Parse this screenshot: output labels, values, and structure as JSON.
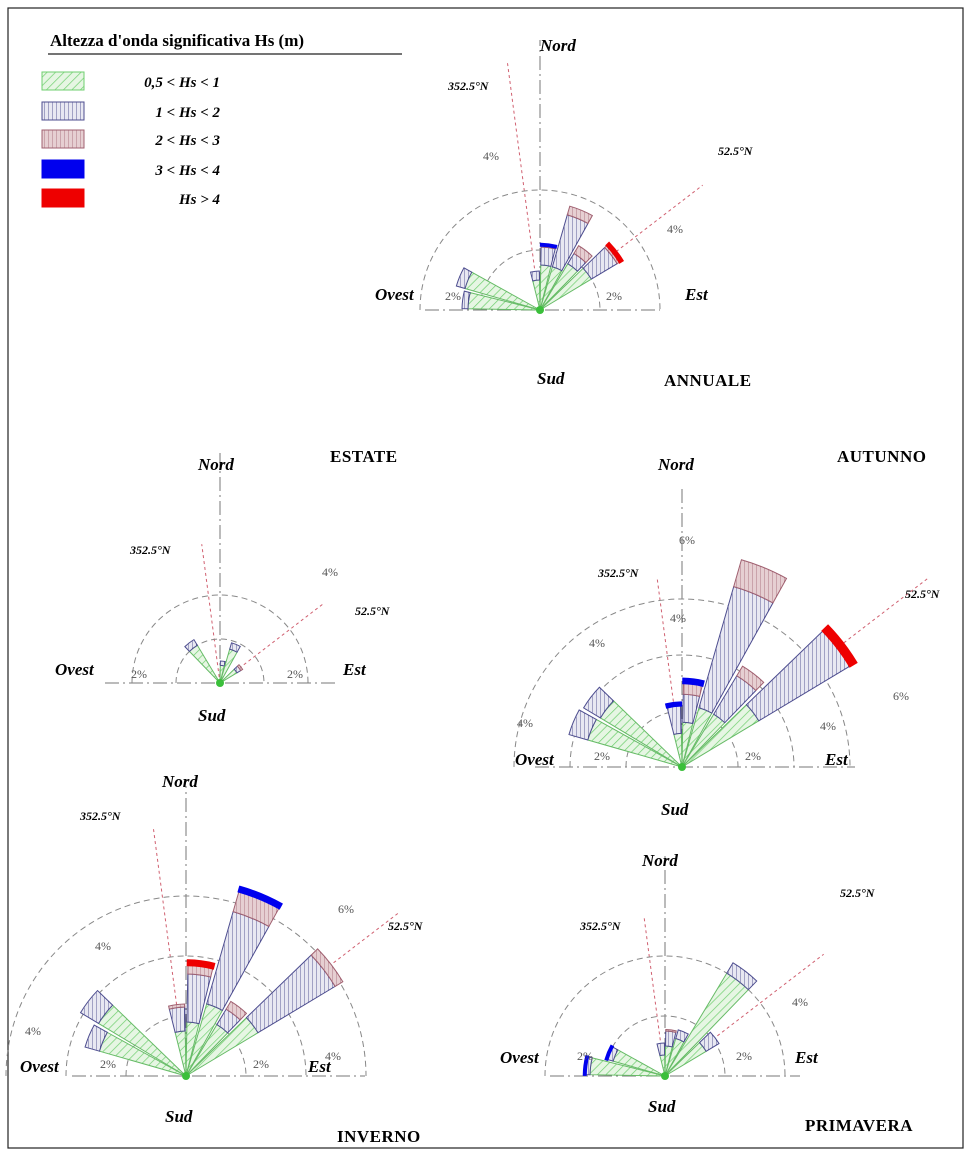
{
  "legend": {
    "title": "Altezza d'onda significativa Hs (m)",
    "items": [
      {
        "label": "0,5 < Hs < 1",
        "color": "#6fcf6f",
        "fill": "#dff3dc"
      },
      {
        "label": "1 < Hs < 2",
        "color": "#4d4d8f",
        "fill": "#e2e2ee"
      },
      {
        "label": "2 < Hs < 3",
        "color": "#a06070",
        "fill": "#ddc3c7"
      },
      {
        "label": "3 < Hs < 4",
        "color": "#0000ee",
        "fill": "#0000ee"
      },
      {
        "label": "Hs > 4",
        "color": "#ee0000",
        "fill": "#ee0000"
      }
    ]
  },
  "labels": {
    "north": "Nord",
    "south": "Sud",
    "west": "Ovest",
    "east": "Est",
    "b1": "352.5°N",
    "b2": "52.5°N"
  },
  "chart_data": [
    {
      "type": "rose",
      "title": "ANNUALE",
      "rings": [
        "2%",
        "4%"
      ],
      "sectors": [
        {
          "dir": 277.5,
          "b": [
            2.4,
            0.2,
            0,
            0,
            0
          ]
        },
        {
          "dir": 292.5,
          "b": [
            2.6,
            0.3,
            0,
            0,
            0
          ]
        },
        {
          "dir": 352.5,
          "b": [
            1.0,
            0.3,
            0,
            0,
            0
          ]
        },
        {
          "dir": 7.5,
          "b": [
            1.5,
            0.6,
            0.05,
            0.05,
            0
          ]
        },
        {
          "dir": 22.5,
          "b": [
            1.5,
            1.8,
            0.3,
            0,
            0
          ]
        },
        {
          "dir": 37.5,
          "b": [
            1.8,
            0.4,
            0.3,
            0,
            0
          ]
        },
        {
          "dir": 52.5,
          "b": [
            2.0,
            1.0,
            0.1,
            0,
            0.1
          ]
        }
      ],
      "pct_labels": {
        "w": "2%",
        "e": "2%",
        "n": "4%",
        "ne": "4%"
      }
    },
    {
      "type": "rose",
      "title": "ESTATE",
      "rings": [
        "2%",
        "4%"
      ],
      "sectors": [
        {
          "dir": 322.5,
          "b": [
            2.0,
            0.3,
            0,
            0,
            0
          ]
        },
        {
          "dir": 7.5,
          "b": [
            0.8,
            0.2,
            0,
            0,
            0
          ]
        },
        {
          "dir": 22.5,
          "b": [
            1.6,
            0.3,
            0,
            0,
            0
          ]
        },
        {
          "dir": 52.5,
          "b": [
            0.9,
            0.2,
            0.1,
            0,
            0
          ]
        }
      ],
      "pct_labels": {
        "w": "2%",
        "e": "2%",
        "ne": "4%"
      }
    },
    {
      "type": "rose",
      "title": "AUTUNNO",
      "rings": [
        "2%",
        "4%",
        "6%"
      ],
      "sectors": [
        {
          "dir": 292.5,
          "b": [
            3.5,
            0.7,
            0,
            0,
            0
          ]
        },
        {
          "dir": 307.5,
          "b": [
            3.4,
            0.7,
            0,
            0,
            0
          ]
        },
        {
          "dir": 352.5,
          "b": [
            1.2,
            1.0,
            0,
            0.1,
            0
          ]
        },
        {
          "dir": 7.5,
          "b": [
            1.6,
            1.0,
            0.4,
            0.15,
            0
          ]
        },
        {
          "dir": 22.5,
          "b": [
            2.2,
            4.5,
            1.0,
            0,
            0
          ]
        },
        {
          "dir": 37.5,
          "b": [
            2.2,
            1.6,
            0.4,
            0,
            0
          ]
        },
        {
          "dir": 52.5,
          "b": [
            3.2,
            3.8,
            0,
            0,
            0.25
          ]
        }
      ],
      "pct_labels": {
        "w": "2%",
        "e": "2%",
        "n": "6%",
        "n2": "4%",
        "ne": "4%",
        "ne2": "6%",
        "w2": "4%",
        "w3": "4%"
      }
    },
    {
      "type": "rose",
      "title": "INVERNO",
      "rings": [
        "2%",
        "4%",
        "6%"
      ],
      "sectors": [
        {
          "dir": 292.5,
          "b": [
            3.0,
            0.5,
            0,
            0,
            0
          ]
        },
        {
          "dir": 307.5,
          "b": [
            3.4,
            0.7,
            0,
            0,
            0
          ]
        },
        {
          "dir": 352.5,
          "b": [
            1.5,
            0.8,
            0.1,
            0,
            0
          ]
        },
        {
          "dir": 7.5,
          "b": [
            1.8,
            1.6,
            0.3,
            0,
            0.15
          ]
        },
        {
          "dir": 22.5,
          "b": [
            2.5,
            3.2,
            0.7,
            0.15,
            0
          ]
        },
        {
          "dir": 37.5,
          "b": [
            2.0,
            0.6,
            0.3,
            0,
            0
          ]
        },
        {
          "dir": 52.5,
          "b": [
            2.8,
            3.0,
            0.3,
            0,
            0
          ]
        }
      ],
      "pct_labels": {
        "w": "2%",
        "e": "2%",
        "ne": "6%",
        "ne2": "4%",
        "w2": "4%",
        "w3": "4%"
      }
    },
    {
      "type": "rose",
      "title": "PRIMAVERA",
      "rings": [
        "2%",
        "4%"
      ],
      "sectors": [
        {
          "dir": 277.5,
          "b": [
            2.5,
            0.15,
            0,
            0.05,
            0
          ]
        },
        {
          "dir": 292.5,
          "b": [
            1.8,
            0.2,
            0,
            0.05,
            0
          ]
        },
        {
          "dir": 352.5,
          "b": [
            0.7,
            0.4,
            0,
            0,
            0
          ]
        },
        {
          "dir": 7.5,
          "b": [
            1.0,
            0.5,
            0.05,
            0,
            0
          ]
        },
        {
          "dir": 22.5,
          "b": [
            1.3,
            0.3,
            0,
            0,
            0
          ]
        },
        {
          "dir": 37.5,
          "b": [
            4.0,
            0.4,
            0,
            0,
            0
          ]
        },
        {
          "dir": 52.5,
          "b": [
            1.6,
            0.5,
            0,
            0,
            0
          ]
        }
      ],
      "pct_labels": {
        "w": "2%",
        "e": "2%",
        "ne": "4%"
      }
    }
  ]
}
